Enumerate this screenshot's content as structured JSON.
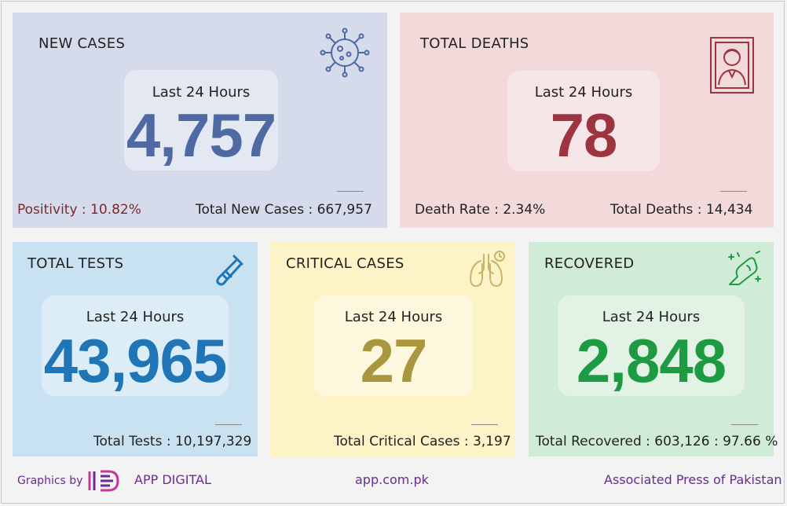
{
  "cards": {
    "new_cases": {
      "title": "NEW CASES",
      "period": "Last 24 Hours",
      "value": "4,757",
      "left_label": "Positivity : 10.82%",
      "right_label": "Total New Cases : 667,957",
      "icon": "virus-icon",
      "color": "#4f6aa3"
    },
    "total_deaths": {
      "title": "TOTAL DEATHS",
      "period": "Last 24 Hours",
      "value": "78",
      "left_label": "Death Rate : 2.34%",
      "right_label": "Total Deaths : 14,434",
      "icon": "portrait-icon",
      "color": "#9c3540"
    },
    "total_tests": {
      "title": "TOTAL TESTS",
      "period": "Last 24 Hours",
      "value": "43,965",
      "footer": "Total Tests : 10,197,329",
      "icon": "test-tube-icon",
      "color": "#1f75b5"
    },
    "critical_cases": {
      "title": "CRITICAL CASES",
      "period": "Last 24 Hours",
      "value": "27",
      "footer": "Total Critical Cases : 3,197",
      "icon": "lungs-icon",
      "color": "#a9963e"
    },
    "recovered": {
      "title": "RECOVERED",
      "period": "Last 24 Hours",
      "value": "2,848",
      "footer": "Total Recovered : 603,126 : 97.66 %",
      "icon": "strong-arm-icon",
      "color": "#1e9a43"
    }
  },
  "footer": {
    "graphics_by": "Graphics by",
    "brand": "APP DIGITAL",
    "website": "app.com.pk",
    "agency": "Associated Press of Pakistan",
    "accent_color": "#6a2c8f"
  }
}
